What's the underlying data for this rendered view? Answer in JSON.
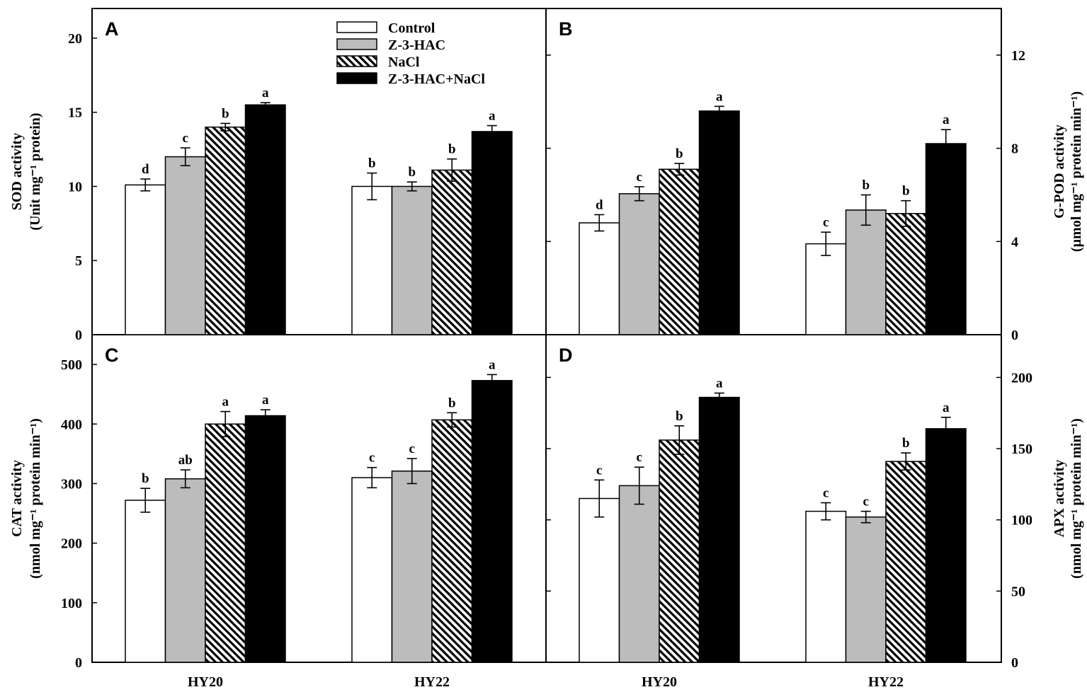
{
  "legend": [
    {
      "name": "Control",
      "fill": "white"
    },
    {
      "name": "Z-3-HAC",
      "fill": "gray"
    },
    {
      "name": "NaCl",
      "fill": "hatch"
    },
    {
      "name": "Z-3-HAC+NaCl",
      "fill": "black"
    }
  ],
  "colors": {
    "gray": "#bcbcbc",
    "black": "#000000",
    "white": "#ffffff"
  },
  "chart_data": [
    {
      "panel": "A",
      "type": "bar",
      "side": "left",
      "ylabel_line1": "SOD activity",
      "ylabel_line2": "(Unit mg⁻¹ protein)",
      "ylim": [
        0,
        22
      ],
      "ticks": [
        0,
        5,
        10,
        15,
        20
      ],
      "categories": [
        "HY20",
        "HY22"
      ],
      "series": [
        {
          "name": "Control",
          "values": [
            10.1,
            10.0
          ],
          "errors": [
            0.4,
            0.9
          ],
          "letters": [
            "d",
            "b"
          ]
        },
        {
          "name": "Z-3-HAC",
          "values": [
            12.0,
            10.0
          ],
          "errors": [
            0.6,
            0.3
          ],
          "letters": [
            "c",
            "b"
          ]
        },
        {
          "name": "NaCl",
          "values": [
            14.0,
            11.1
          ],
          "errors": [
            0.25,
            0.75
          ],
          "letters": [
            "b",
            "b"
          ]
        },
        {
          "name": "Z-3-HAC+NaCl",
          "values": [
            15.5,
            13.7
          ],
          "errors": [
            0.15,
            0.4
          ],
          "letters": [
            "a",
            "a"
          ]
        }
      ]
    },
    {
      "panel": "B",
      "type": "bar",
      "side": "right",
      "ylabel_line1": "G-POD activity",
      "ylabel_line2": "(µmol mg⁻¹ protein min⁻¹)",
      "ylim": [
        0,
        14
      ],
      "ticks": [
        0,
        4,
        8,
        12
      ],
      "categories": [
        "HY20",
        "HY22"
      ],
      "series": [
        {
          "name": "Control",
          "values": [
            4.8,
            3.9
          ],
          "errors": [
            0.35,
            0.5
          ],
          "letters": [
            "d",
            "c"
          ]
        },
        {
          "name": "Z-3-HAC",
          "values": [
            6.05,
            5.35
          ],
          "errors": [
            0.3,
            0.65
          ],
          "letters": [
            "c",
            "b"
          ]
        },
        {
          "name": "NaCl",
          "values": [
            7.1,
            5.2
          ],
          "errors": [
            0.25,
            0.55
          ],
          "letters": [
            "b",
            "b"
          ]
        },
        {
          "name": "Z-3-HAC+NaCl",
          "values": [
            9.6,
            8.2
          ],
          "errors": [
            0.2,
            0.6
          ],
          "letters": [
            "a",
            "a"
          ]
        }
      ]
    },
    {
      "panel": "C",
      "type": "bar",
      "side": "left",
      "ylabel_line1": "CAT activity",
      "ylabel_line2": "(nmol mg⁻¹ protein min⁻¹)",
      "ylim": [
        0,
        550
      ],
      "ticks": [
        0,
        100,
        200,
        300,
        400,
        500
      ],
      "categories": [
        "HY20",
        "HY22"
      ],
      "series": [
        {
          "name": "Control",
          "values": [
            272,
            310
          ],
          "errors": [
            20,
            17
          ],
          "letters": [
            "b",
            "c"
          ]
        },
        {
          "name": "Z-3-HAC",
          "values": [
            308,
            321
          ],
          "errors": [
            15,
            21
          ],
          "letters": [
            "ab",
            "c"
          ]
        },
        {
          "name": "NaCl",
          "values": [
            400,
            407
          ],
          "errors": [
            21,
            12
          ],
          "letters": [
            "a",
            "b"
          ]
        },
        {
          "name": "Z-3-HAC+NaCl",
          "values": [
            414,
            473
          ],
          "errors": [
            10,
            10
          ],
          "letters": [
            "a",
            "a"
          ]
        }
      ]
    },
    {
      "panel": "D",
      "type": "bar",
      "side": "right",
      "ylabel_line1": "APX activity",
      "ylabel_line2": "(nmol mg⁻¹ protein min⁻¹)",
      "ylim": [
        0,
        230
      ],
      "ticks": [
        0,
        50,
        100,
        150,
        200
      ],
      "categories": [
        "HY20",
        "HY22"
      ],
      "series": [
        {
          "name": "Control",
          "values": [
            115,
            106
          ],
          "errors": [
            13,
            6
          ],
          "letters": [
            "c",
            "c"
          ]
        },
        {
          "name": "Z-3-HAC",
          "values": [
            124,
            102
          ],
          "errors": [
            13,
            4
          ],
          "letters": [
            "c",
            "c"
          ]
        },
        {
          "name": "NaCl",
          "values": [
            156,
            141
          ],
          "errors": [
            10,
            6
          ],
          "letters": [
            "b",
            "b"
          ]
        },
        {
          "name": "Z-3-HAC+NaCl",
          "values": [
            186,
            164
          ],
          "errors": [
            3,
            8
          ],
          "letters": [
            "a",
            "a"
          ]
        }
      ]
    }
  ]
}
